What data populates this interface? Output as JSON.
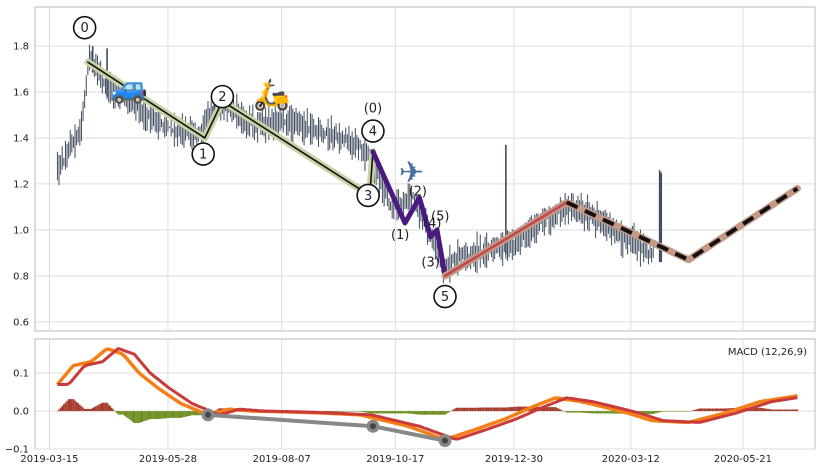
{
  "chart_data": [
    {
      "type": "candlestick",
      "panel": "price",
      "ylim": [
        0.56,
        1.97
      ],
      "yticks": [
        "0.6",
        "0.8",
        "1.0",
        "1.2",
        "1.4",
        "1.6",
        "1.8"
      ],
      "yvals": [
        0.6,
        0.8,
        1.0,
        1.2,
        1.4,
        1.6,
        1.8
      ],
      "grid": true,
      "price_anchors": [
        [
          "2019-03-20",
          1.25
        ],
        [
          "2019-03-28",
          1.35
        ],
        [
          "2019-04-04",
          1.45
        ],
        [
          "2019-04-09",
          1.75
        ],
        [
          "2019-04-20",
          1.62
        ],
        [
          "2019-05-01",
          1.58
        ],
        [
          "2019-05-15",
          1.5
        ],
        [
          "2019-06-01",
          1.43
        ],
        [
          "2019-06-18",
          1.42
        ],
        [
          "2019-06-24",
          1.52
        ],
        [
          "2019-07-02",
          1.55
        ],
        [
          "2019-07-20",
          1.46
        ],
        [
          "2019-08-10",
          1.47
        ],
        [
          "2019-09-01",
          1.43
        ],
        [
          "2019-09-20",
          1.38
        ],
        [
          "2019-10-01",
          1.33
        ],
        [
          "2019-10-03",
          1.28
        ],
        [
          "2019-10-15",
          1.1
        ],
        [
          "2019-10-28",
          1.15
        ],
        [
          "2019-11-10",
          0.95
        ],
        [
          "2019-11-15",
          0.83
        ],
        [
          "2019-11-25",
          0.88
        ],
        [
          "2019-12-10",
          0.9
        ],
        [
          "2020-01-01",
          0.95
        ],
        [
          "2020-01-20",
          1.05
        ],
        [
          "2020-02-05",
          1.1
        ],
        [
          "2020-02-20",
          1.05
        ],
        [
          "2020-03-05",
          0.98
        ],
        [
          "2020-03-20",
          0.92
        ],
        [
          "2020-03-26",
          0.9
        ]
      ],
      "spikes": [
        [
          "2019-04-11",
          1.8
        ],
        [
          "2019-04-20",
          1.79
        ],
        [
          "2019-06-26",
          1.6
        ],
        [
          "2019-12-25",
          1.37
        ],
        [
          "2020-03-30",
          1.26
        ],
        [
          "2020-03-31",
          1.25
        ]
      ],
      "wave_lines": [
        {
          "color": "#c8d2a5",
          "width": 7,
          "points": [
            [
              "2019-04-08",
              1.73
            ],
            [
              "2019-06-20",
              1.4
            ],
            [
              "2019-07-01",
              1.56
            ],
            [
              "2019-10-01",
              1.15
            ],
            [
              "2019-10-03",
              1.34
            ]
          ]
        },
        {
          "color": "#111111",
          "width": 1.6,
          "points": [
            [
              "2019-04-08",
              1.73
            ],
            [
              "2019-06-20",
              1.4
            ],
            [
              "2019-07-01",
              1.56
            ],
            [
              "2019-10-01",
              1.15
            ],
            [
              "2019-10-03",
              1.34
            ]
          ]
        },
        {
          "color": "#4b1a80",
          "width": 5,
          "points": [
            [
              "2019-10-03",
              1.34
            ],
            [
              "2019-10-23",
              1.03
            ],
            [
              "2019-11-01",
              1.14
            ],
            [
              "2019-11-08",
              0.97
            ],
            [
              "2019-11-12",
              1.0
            ],
            [
              "2019-11-17",
              0.8
            ]
          ]
        },
        {
          "color": "#c49a87",
          "width": 7,
          "points": [
            [
              "2019-11-17",
              0.8
            ],
            [
              "2020-02-01",
              1.12
            ],
            [
              "2020-04-17",
              0.87
            ],
            [
              "2020-06-24",
              1.18
            ]
          ]
        },
        {
          "color": "#c0474b",
          "width": 2.5,
          "points": [
            [
              "2019-11-17",
              0.8
            ],
            [
              "2020-02-01",
              1.12
            ]
          ]
        },
        {
          "color": "#111111",
          "width": 4,
          "dash": "12,8",
          "points": [
            [
              "2020-02-01",
              1.12
            ],
            [
              "2020-04-17",
              0.87
            ],
            [
              "2020-06-24",
              1.18
            ]
          ]
        }
      ],
      "wave_labels": [
        {
          "text": "0",
          "circle": true,
          "date": "2019-04-06",
          "y": 1.88
        },
        {
          "text": "1",
          "circle": true,
          "date": "2019-06-19",
          "y": 1.33
        },
        {
          "text": "2",
          "circle": true,
          "date": "2019-07-01",
          "y": 1.58
        },
        {
          "text": "3",
          "circle": true,
          "date": "2019-09-30",
          "y": 1.15
        },
        {
          "text": "(0)",
          "circle": false,
          "date": "2019-10-03",
          "y": 1.53
        },
        {
          "text": "4",
          "circle": true,
          "date": "2019-10-03",
          "y": 1.43
        },
        {
          "text": "(1)",
          "circle": false,
          "date": "2019-10-20",
          "y": 0.98
        },
        {
          "text": "(2)",
          "circle": false,
          "date": "2019-10-31",
          "y": 1.17
        },
        {
          "text": "(4)",
          "circle": false,
          "date": "2019-11-09",
          "y": 1.03
        },
        {
          "text": "(5)",
          "circle": false,
          "date": "2019-11-14",
          "y": 1.06
        },
        {
          "text": "(3)",
          "circle": false,
          "date": "2019-11-08",
          "y": 0.86
        },
        {
          "text": "5",
          "circle": true,
          "date": "2019-11-17",
          "y": 0.71
        }
      ],
      "emoji_markers": [
        {
          "name": "car-emoji",
          "icon": "car-icon",
          "glyph": "🚙",
          "date": "2019-05-04",
          "y": 1.62
        },
        {
          "name": "scooter-emoji",
          "icon": "scooter-icon",
          "glyph": "🛵",
          "date": "2019-08-01",
          "y": 1.59
        },
        {
          "name": "plane-emoji",
          "icon": "plane-icon",
          "glyph": "✈",
          "date": "2019-10-27",
          "y": 1.25
        }
      ]
    },
    {
      "type": "macd",
      "panel": "macd",
      "label": "MACD (12,26,9)",
      "ylim": [
        -0.1,
        0.19
      ],
      "yticks": [
        "−0.1",
        "0.0",
        "0.1"
      ],
      "yvals": [
        -0.1,
        0.0,
        0.1
      ],
      "grid": true,
      "macd_points": [
        [
          "2019-03-20",
          0.07
        ],
        [
          "2019-03-30",
          0.12
        ],
        [
          "2019-04-10",
          0.13
        ],
        [
          "2019-04-20",
          0.165
        ],
        [
          "2019-04-30",
          0.15
        ],
        [
          "2019-05-10",
          0.1
        ],
        [
          "2019-05-22",
          0.06
        ],
        [
          "2019-06-05",
          0.02
        ],
        [
          "2019-06-22",
          -0.01
        ],
        [
          "2019-07-05",
          0.005
        ],
        [
          "2019-07-20",
          0.0
        ],
        [
          "2019-08-10",
          -0.002
        ],
        [
          "2019-09-01",
          -0.005
        ],
        [
          "2019-09-25",
          -0.01
        ],
        [
          "2019-10-05",
          -0.02
        ],
        [
          "2019-10-25",
          -0.04
        ],
        [
          "2019-11-17",
          -0.075
        ],
        [
          "2019-12-05",
          -0.05
        ],
        [
          "2019-12-25",
          -0.02
        ],
        [
          "2020-01-10",
          0.01
        ],
        [
          "2020-01-25",
          0.035
        ],
        [
          "2020-02-10",
          0.025
        ],
        [
          "2020-02-25",
          0.01
        ],
        [
          "2020-03-10",
          -0.005
        ],
        [
          "2020-03-25",
          -0.025
        ],
        [
          "2020-04-17",
          -0.03
        ],
        [
          "2020-05-10",
          -0.005
        ],
        [
          "2020-06-01",
          0.025
        ],
        [
          "2020-06-24",
          0.04
        ]
      ],
      "signal_offset_days": 7,
      "macd_color": "#f57f17",
      "signal_color": "#c93a3a",
      "divergence_line": {
        "color": "#888888",
        "width": 4,
        "points": [
          [
            "2019-06-22",
            -0.01
          ],
          [
            "2019-10-03",
            -0.04
          ],
          [
            "2019-11-17",
            -0.078
          ]
        ]
      },
      "hist_pos_color": "#a33a2c",
      "hist_neg_color": "#6f8e21"
    }
  ],
  "x_axis": {
    "date_range": [
      "2019-03-06",
      "2020-07-05"
    ],
    "tick_dates": [
      "2019-03-15",
      "2019-05-28",
      "2019-08-07",
      "2019-10-17",
      "2019-12-30",
      "2020-03-12",
      "2020-05-21"
    ],
    "tick_labels": [
      "2019-03-15",
      "2019-05-28",
      "2019-08-07",
      "2019-10-17",
      "2019-12-30",
      "2020-03-12",
      "2020-05-21"
    ]
  }
}
